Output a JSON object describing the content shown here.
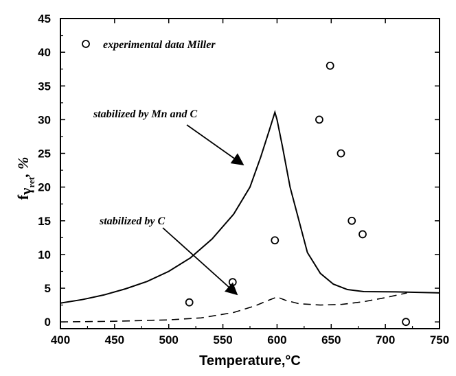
{
  "chart_data": {
    "type": "line",
    "xlabel": "Temperature,°C",
    "ylabel": {
      "main": "f",
      "gamma": "γ",
      "sub": "ret",
      "unit": ", %"
    },
    "xlim": [
      400,
      750
    ],
    "ylim": [
      -1,
      45
    ],
    "x_ticks": [
      400,
      450,
      500,
      550,
      600,
      650,
      700,
      750
    ],
    "y_ticks": [
      0,
      5,
      10,
      15,
      20,
      25,
      30,
      35,
      40,
      45
    ],
    "grid": false,
    "series": [
      {
        "name": "stabilized by Mn and C",
        "style": "solid",
        "points": [
          [
            400,
            2.8
          ],
          [
            420,
            3.3
          ],
          [
            440,
            4.0
          ],
          [
            460,
            4.9
          ],
          [
            480,
            6.0
          ],
          [
            500,
            7.5
          ],
          [
            520,
            9.5
          ],
          [
            540,
            12.3
          ],
          [
            560,
            16.0
          ],
          [
            575,
            20.0
          ],
          [
            585,
            24.5
          ],
          [
            593,
            28.5
          ],
          [
            598,
            31.1
          ],
          [
            600,
            30.0
          ],
          [
            605,
            26.0
          ],
          [
            612,
            20.0
          ],
          [
            617,
            17.0
          ],
          [
            628,
            10.3
          ],
          [
            640,
            7.2
          ],
          [
            652,
            5.6
          ],
          [
            665,
            4.8
          ],
          [
            680,
            4.5
          ],
          [
            710,
            4.45
          ],
          [
            750,
            4.3
          ]
        ]
      },
      {
        "name": "stabilized by C",
        "style": "dashed",
        "points": [
          [
            400,
            0.0
          ],
          [
            450,
            0.1
          ],
          [
            500,
            0.3
          ],
          [
            530,
            0.6
          ],
          [
            560,
            1.4
          ],
          [
            580,
            2.4
          ],
          [
            592,
            3.2
          ],
          [
            600,
            3.7
          ],
          [
            608,
            3.2
          ],
          [
            620,
            2.7
          ],
          [
            640,
            2.5
          ],
          [
            660,
            2.6
          ],
          [
            680,
            3.0
          ],
          [
            700,
            3.6
          ],
          [
            720,
            4.3
          ]
        ]
      },
      {
        "name": "experimental data Miller",
        "style": "markers",
        "points": [
          [
            519,
            2.9
          ],
          [
            559,
            5.9
          ],
          [
            598,
            12.1
          ],
          [
            639,
            30.0
          ],
          [
            649,
            38.0
          ],
          [
            659,
            25.0
          ],
          [
            669,
            15.0
          ],
          [
            679,
            13.0
          ],
          [
            719,
            0.0
          ]
        ]
      }
    ],
    "legend": {
      "placement": "top-left",
      "label": "experimental data Miller"
    },
    "annotations": [
      {
        "text": "stabilized by Mn and C",
        "arrow_to": [
          585,
          22.6
        ]
      },
      {
        "text": "stabilized by C",
        "arrow_to": [
          579,
          2.6
        ]
      }
    ]
  }
}
